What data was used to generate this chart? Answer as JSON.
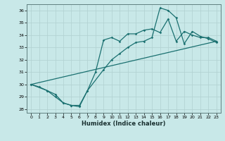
{
  "xlabel": "Humidex (Indice chaleur)",
  "background_color": "#c8e8e8",
  "grid_color": "#b0d0d0",
  "line_color": "#1a7070",
  "xlim": [
    -0.5,
    23.5
  ],
  "ylim": [
    27.7,
    36.5
  ],
  "xticks": [
    0,
    1,
    2,
    3,
    4,
    5,
    6,
    7,
    8,
    9,
    10,
    11,
    12,
    13,
    14,
    15,
    16,
    17,
    18,
    19,
    20,
    21,
    22,
    23
  ],
  "yticks": [
    28,
    29,
    30,
    31,
    32,
    33,
    34,
    35,
    36
  ],
  "line1_x": [
    0,
    1,
    2,
    3,
    4,
    5,
    6,
    7,
    8,
    9,
    10,
    11,
    12,
    13,
    14,
    15,
    16,
    17,
    18,
    19,
    20,
    21,
    22,
    23
  ],
  "line1_y": [
    30.0,
    29.8,
    29.5,
    29.2,
    28.5,
    28.3,
    28.3,
    29.5,
    31.0,
    33.6,
    33.8,
    33.5,
    34.1,
    34.1,
    34.4,
    34.5,
    34.2,
    35.3,
    33.5,
    34.3,
    34.0,
    33.8,
    33.8,
    33.5
  ],
  "line2_x": [
    0,
    23
  ],
  "line2_y": [
    30.0,
    33.5
  ],
  "line3_x": [
    0,
    2,
    3,
    4,
    5,
    6,
    7,
    9,
    10,
    11,
    12,
    13,
    14,
    15,
    16,
    17,
    18,
    19,
    20,
    21,
    22,
    23
  ],
  "line3_y": [
    30.0,
    29.5,
    29.0,
    28.5,
    28.3,
    28.2,
    29.5,
    31.2,
    32.0,
    32.5,
    33.0,
    33.4,
    33.5,
    33.8,
    36.2,
    36.0,
    35.4,
    33.3,
    34.3,
    33.9,
    33.7,
    33.4
  ]
}
